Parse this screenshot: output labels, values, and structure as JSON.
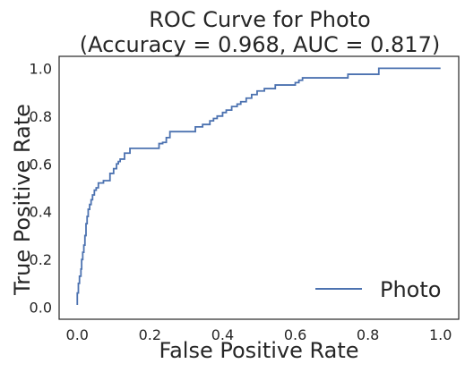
{
  "chart_data": {
    "type": "line",
    "title_line1": "ROC Curve for Photo",
    "title_line2": "(Accuracy = 0.968, AUC = 0.817)",
    "xlabel": "False Positive Rate",
    "ylabel": "True Positive Rate",
    "xlim": [
      -0.05,
      1.05
    ],
    "ylim": [
      -0.05,
      1.05
    ],
    "xticks": [
      "0.0",
      "0.2",
      "0.4",
      "0.6",
      "0.8",
      "1.0"
    ],
    "yticks": [
      "0.0",
      "0.2",
      "0.4",
      "0.6",
      "0.8",
      "1.0"
    ],
    "grid": false,
    "legend_position": "bottom-right",
    "series": [
      {
        "name": "Photo",
        "color": "#4c72b0",
        "x": [
          0.0,
          0.0,
          0.003,
          0.003,
          0.006,
          0.006,
          0.01,
          0.01,
          0.012,
          0.012,
          0.015,
          0.015,
          0.018,
          0.018,
          0.021,
          0.021,
          0.024,
          0.024,
          0.027,
          0.027,
          0.03,
          0.03,
          0.034,
          0.034,
          0.038,
          0.038,
          0.042,
          0.042,
          0.047,
          0.047,
          0.052,
          0.052,
          0.058,
          0.058,
          0.065,
          0.065,
          0.072,
          0.072,
          0.09,
          0.09,
          0.1,
          0.1,
          0.108,
          0.108,
          0.113,
          0.113,
          0.118,
          0.118,
          0.124,
          0.124,
          0.13,
          0.13,
          0.145,
          0.145,
          0.165,
          0.165,
          0.225,
          0.225,
          0.235,
          0.235,
          0.245,
          0.245,
          0.255,
          0.255,
          0.275,
          0.275,
          0.325,
          0.325,
          0.345,
          0.345,
          0.365,
          0.365,
          0.375,
          0.375,
          0.385,
          0.385,
          0.4,
          0.4,
          0.41,
          0.41,
          0.425,
          0.425,
          0.44,
          0.44,
          0.45,
          0.45,
          0.465,
          0.465,
          0.48,
          0.48,
          0.495,
          0.495,
          0.515,
          0.515,
          0.545,
          0.545,
          0.6,
          0.6,
          0.61,
          0.61,
          0.62,
          0.62,
          0.745,
          0.745,
          0.83,
          0.83,
          1.0
        ],
        "y": [
          0.01,
          0.06,
          0.06,
          0.1,
          0.1,
          0.13,
          0.13,
          0.16,
          0.16,
          0.2,
          0.2,
          0.23,
          0.23,
          0.26,
          0.26,
          0.3,
          0.3,
          0.35,
          0.35,
          0.38,
          0.38,
          0.41,
          0.41,
          0.43,
          0.43,
          0.45,
          0.45,
          0.47,
          0.47,
          0.49,
          0.49,
          0.5,
          0.5,
          0.52,
          0.52,
          0.52,
          0.52,
          0.53,
          0.53,
          0.56,
          0.56,
          0.58,
          0.58,
          0.6,
          0.6,
          0.61,
          0.61,
          0.62,
          0.62,
          0.62,
          0.62,
          0.645,
          0.645,
          0.665,
          0.665,
          0.665,
          0.665,
          0.685,
          0.685,
          0.69,
          0.69,
          0.71,
          0.71,
          0.735,
          0.735,
          0.735,
          0.735,
          0.755,
          0.755,
          0.765,
          0.765,
          0.78,
          0.78,
          0.79,
          0.79,
          0.8,
          0.8,
          0.815,
          0.815,
          0.825,
          0.825,
          0.84,
          0.84,
          0.85,
          0.85,
          0.86,
          0.86,
          0.875,
          0.875,
          0.89,
          0.89,
          0.905,
          0.905,
          0.915,
          0.915,
          0.93,
          0.93,
          0.94,
          0.94,
          0.95,
          0.95,
          0.96,
          0.96,
          0.975,
          0.975,
          1.0,
          1.0
        ]
      }
    ]
  }
}
